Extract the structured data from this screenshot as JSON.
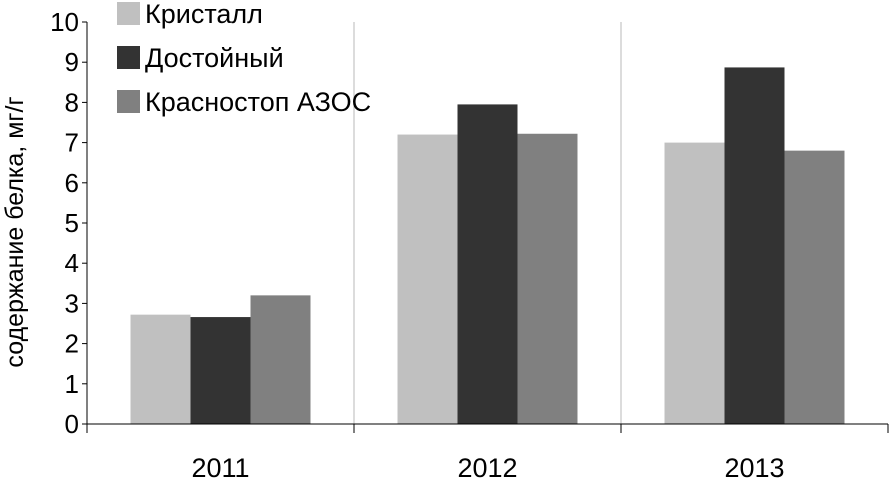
{
  "chart_data": {
    "type": "bar",
    "title": "",
    "xlabel": "",
    "ylabel": "содержание белка, мг/г",
    "categories": [
      "2011",
      "2012",
      "2013"
    ],
    "series": [
      {
        "name": "Кристалл",
        "values": [
          2.72,
          7.2,
          7.0
        ],
        "color": "#c0c0c0"
      },
      {
        "name": "Достойный",
        "values": [
          2.66,
          7.95,
          8.87
        ],
        "color": "#333333"
      },
      {
        "name": "Красностоп АЗОС",
        "values": [
          3.2,
          7.22,
          6.8
        ],
        "color": "#808080"
      }
    ],
    "ylim": [
      0,
      10
    ],
    "yticks": [
      "0",
      "1",
      "2",
      "3",
      "4",
      "5",
      "6",
      "7",
      "8",
      "9",
      "10"
    ],
    "grid": "vertical separators between categories",
    "legend_position": "top-left inside plot"
  }
}
